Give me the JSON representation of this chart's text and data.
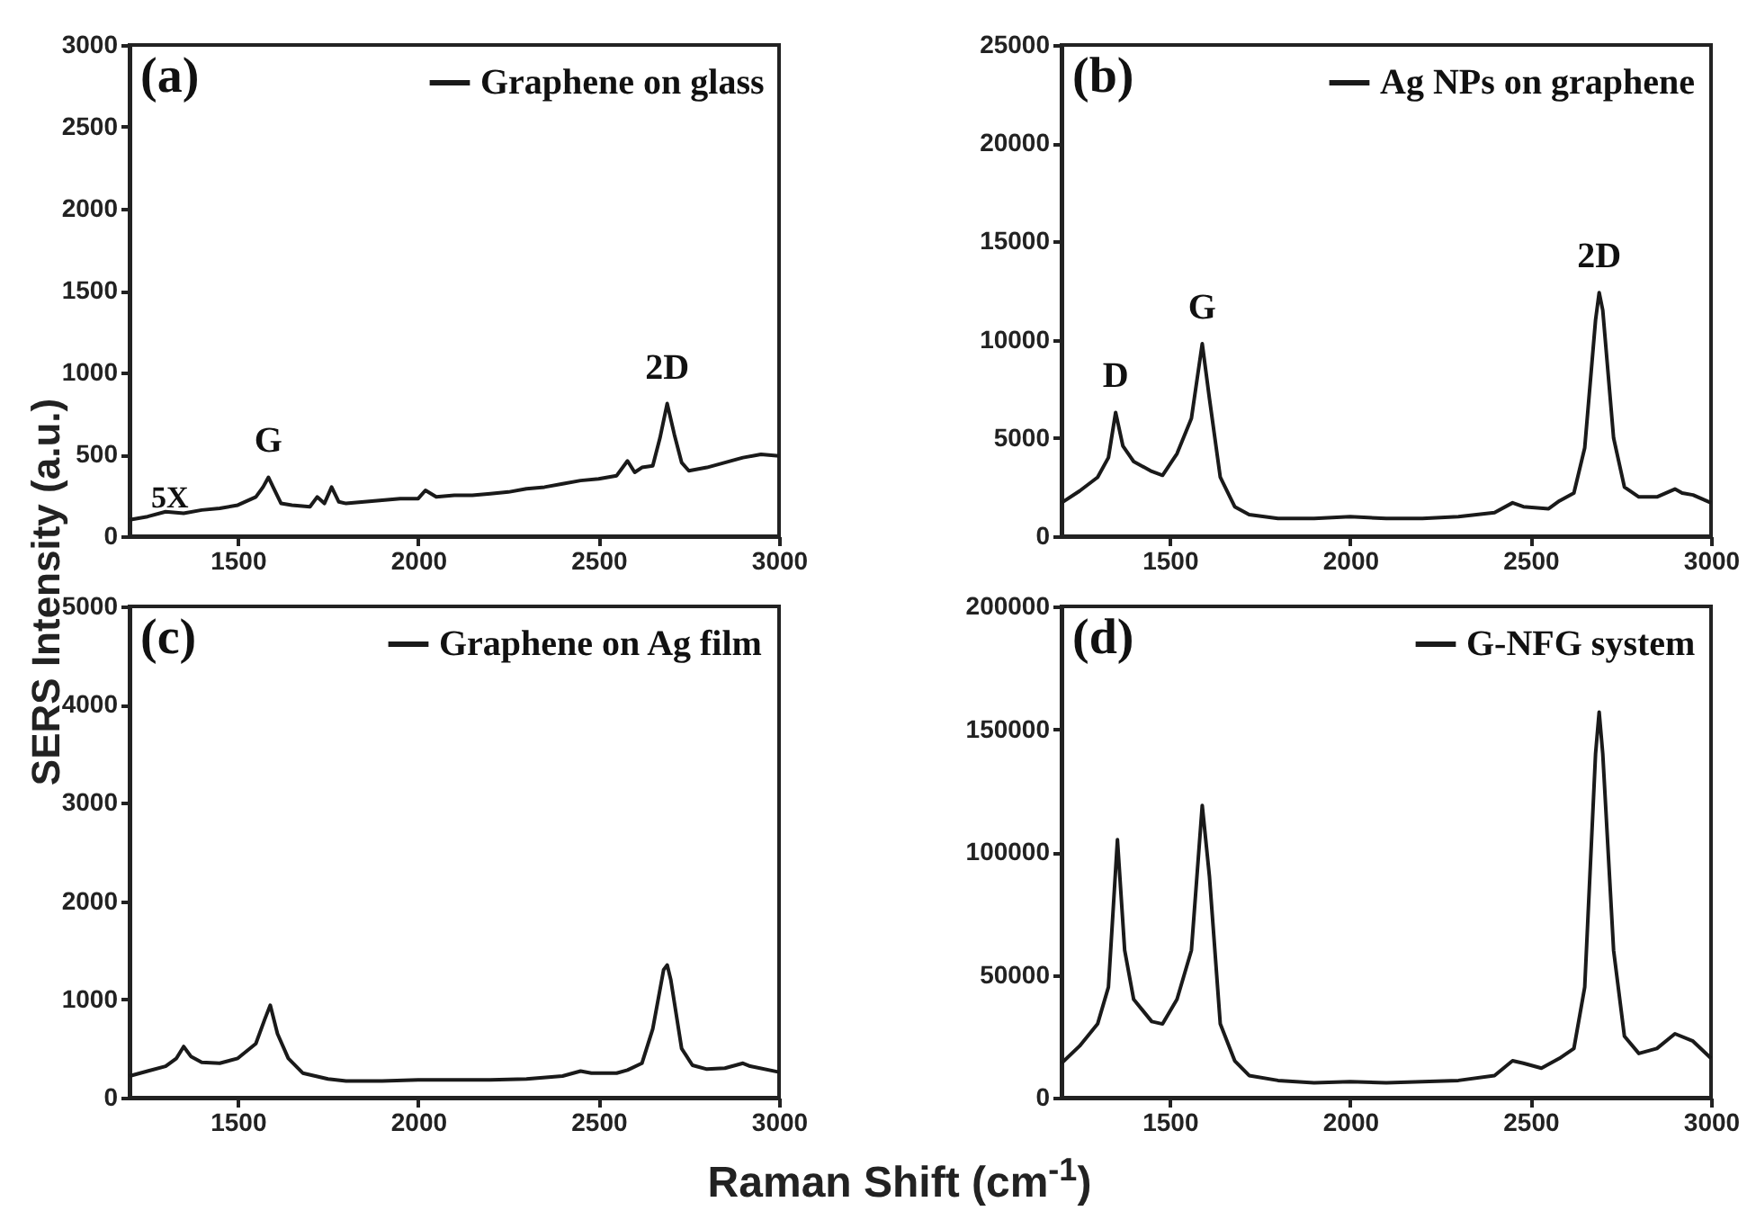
{
  "chart_data": [
    {
      "type": "line",
      "ylabel": "SERS Intensity (a.u.)",
      "xlim": [
        1200,
        3000
      ],
      "xticks": [
        1500,
        2000,
        2500,
        3000
      ],
      "ylim": [
        0,
        3000
      ],
      "yticks": [
        0,
        500,
        1000,
        1500,
        2000,
        2500,
        3000
      ],
      "legend": "top right",
      "grid": false,
      "annotations": [
        "(a)",
        "5X",
        {
          "text": "G",
          "x": 1585,
          "y": 360
        },
        {
          "text": "2D",
          "x": 2690,
          "y": 810
        }
      ],
      "series": [
        {
          "name": "Graphene on glass",
          "color": "#1a1a1a",
          "x": [
            1200,
            1250,
            1300,
            1350,
            1400,
            1450,
            1500,
            1550,
            1570,
            1585,
            1600,
            1620,
            1650,
            1700,
            1720,
            1740,
            1760,
            1780,
            1800,
            1850,
            1900,
            1950,
            2000,
            2020,
            2050,
            2100,
            2150,
            2200,
            2250,
            2300,
            2350,
            2400,
            2450,
            2500,
            2550,
            2580,
            2600,
            2620,
            2650,
            2670,
            2690,
            2710,
            2730,
            2750,
            2800,
            2850,
            2900,
            2950,
            3000
          ],
          "values": [
            100,
            120,
            150,
            140,
            160,
            170,
            190,
            240,
            300,
            360,
            290,
            200,
            190,
            180,
            240,
            200,
            300,
            210,
            200,
            210,
            220,
            230,
            230,
            280,
            240,
            250,
            250,
            260,
            270,
            290,
            300,
            320,
            340,
            350,
            370,
            460,
            390,
            420,
            430,
            600,
            810,
            620,
            450,
            400,
            420,
            450,
            480,
            500,
            490
          ]
        }
      ]
    },
    {
      "type": "line",
      "xlim": [
        1200,
        3000
      ],
      "xticks": [
        1500,
        2000,
        2500,
        3000
      ],
      "ylim": [
        0,
        25000
      ],
      "yticks": [
        0,
        5000,
        10000,
        15000,
        20000,
        25000
      ],
      "legend": "top right",
      "grid": false,
      "annotations": [
        "(b)",
        {
          "text": "D",
          "x": 1350,
          "y": 6300
        },
        {
          "text": "G",
          "x": 1590,
          "y": 9800
        },
        {
          "text": "2D",
          "x": 2690,
          "y": 12400
        }
      ],
      "series": [
        {
          "name": "Ag NPs on graphene",
          "color": "#1a1a1a",
          "x": [
            1200,
            1250,
            1300,
            1330,
            1350,
            1370,
            1400,
            1450,
            1480,
            1520,
            1560,
            1590,
            1610,
            1640,
            1680,
            1720,
            1800,
            1900,
            2000,
            2100,
            2200,
            2300,
            2400,
            2450,
            2480,
            2550,
            2580,
            2620,
            2650,
            2680,
            2690,
            2700,
            2730,
            2760,
            2800,
            2850,
            2900,
            2920,
            2950,
            3000
          ],
          "values": [
            1700,
            2300,
            3000,
            4000,
            6300,
            4600,
            3800,
            3300,
            3100,
            4200,
            6000,
            9800,
            7000,
            3000,
            1500,
            1100,
            900,
            900,
            1000,
            900,
            900,
            1000,
            1200,
            1700,
            1500,
            1400,
            1800,
            2200,
            4500,
            11000,
            12400,
            11500,
            5000,
            2500,
            2000,
            2000,
            2400,
            2200,
            2100,
            1700
          ]
        }
      ]
    },
    {
      "type": "line",
      "xlabel": "Raman Shift (cm$^{-1}$)",
      "xlim": [
        1200,
        3000
      ],
      "xticks": [
        1500,
        2000,
        2500,
        3000
      ],
      "ylim": [
        0,
        5000
      ],
      "yticks": [
        0,
        1000,
        2000,
        3000,
        4000,
        5000
      ],
      "legend": "top right",
      "grid": false,
      "annotations": [
        "(c)"
      ],
      "series": [
        {
          "name": "Graphene on Ag film",
          "color": "#1a1a1a",
          "x": [
            1200,
            1250,
            1300,
            1330,
            1350,
            1370,
            1400,
            1450,
            1500,
            1550,
            1575,
            1590,
            1610,
            1640,
            1680,
            1750,
            1800,
            1900,
            2000,
            2100,
            2200,
            2300,
            2400,
            2450,
            2480,
            2550,
            2580,
            2620,
            2650,
            2680,
            2690,
            2700,
            2730,
            2760,
            2800,
            2850,
            2900,
            2920,
            3000
          ],
          "values": [
            220,
            270,
            320,
            400,
            520,
            420,
            360,
            350,
            400,
            550,
            800,
            940,
            650,
            400,
            250,
            190,
            170,
            170,
            180,
            180,
            180,
            190,
            220,
            270,
            250,
            250,
            280,
            350,
            700,
            1300,
            1350,
            1200,
            500,
            330,
            290,
            300,
            350,
            320,
            260
          ]
        }
      ]
    },
    {
      "type": "line",
      "xlim": [
        1200,
        3000
      ],
      "xticks": [
        1500,
        2000,
        2500,
        3000
      ],
      "ylim": [
        0,
        200000
      ],
      "yticks": [
        0,
        50000,
        100000,
        150000,
        200000
      ],
      "legend": "top right",
      "grid": false,
      "annotations": [
        "(d)"
      ],
      "series": [
        {
          "name": "G-NFG system",
          "color": "#1a1a1a",
          "x": [
            1200,
            1250,
            1300,
            1330,
            1355,
            1375,
            1400,
            1450,
            1480,
            1520,
            1560,
            1590,
            1610,
            1640,
            1680,
            1720,
            1800,
            1900,
            2000,
            2100,
            2200,
            2300,
            2400,
            2450,
            2480,
            2530,
            2580,
            2620,
            2650,
            2680,
            2690,
            2700,
            2730,
            2760,
            2800,
            2850,
            2900,
            2950,
            3000
          ],
          "values": [
            14000,
            21000,
            30000,
            45000,
            105000,
            60000,
            40000,
            31000,
            30000,
            40000,
            60000,
            119000,
            90000,
            30000,
            15000,
            9000,
            7000,
            6000,
            6500,
            6000,
            6500,
            7000,
            9000,
            15000,
            14000,
            12000,
            16000,
            20000,
            45000,
            140000,
            157000,
            140000,
            60000,
            25000,
            18000,
            20000,
            26000,
            23000,
            16000
          ]
        }
      ]
    }
  ]
}
